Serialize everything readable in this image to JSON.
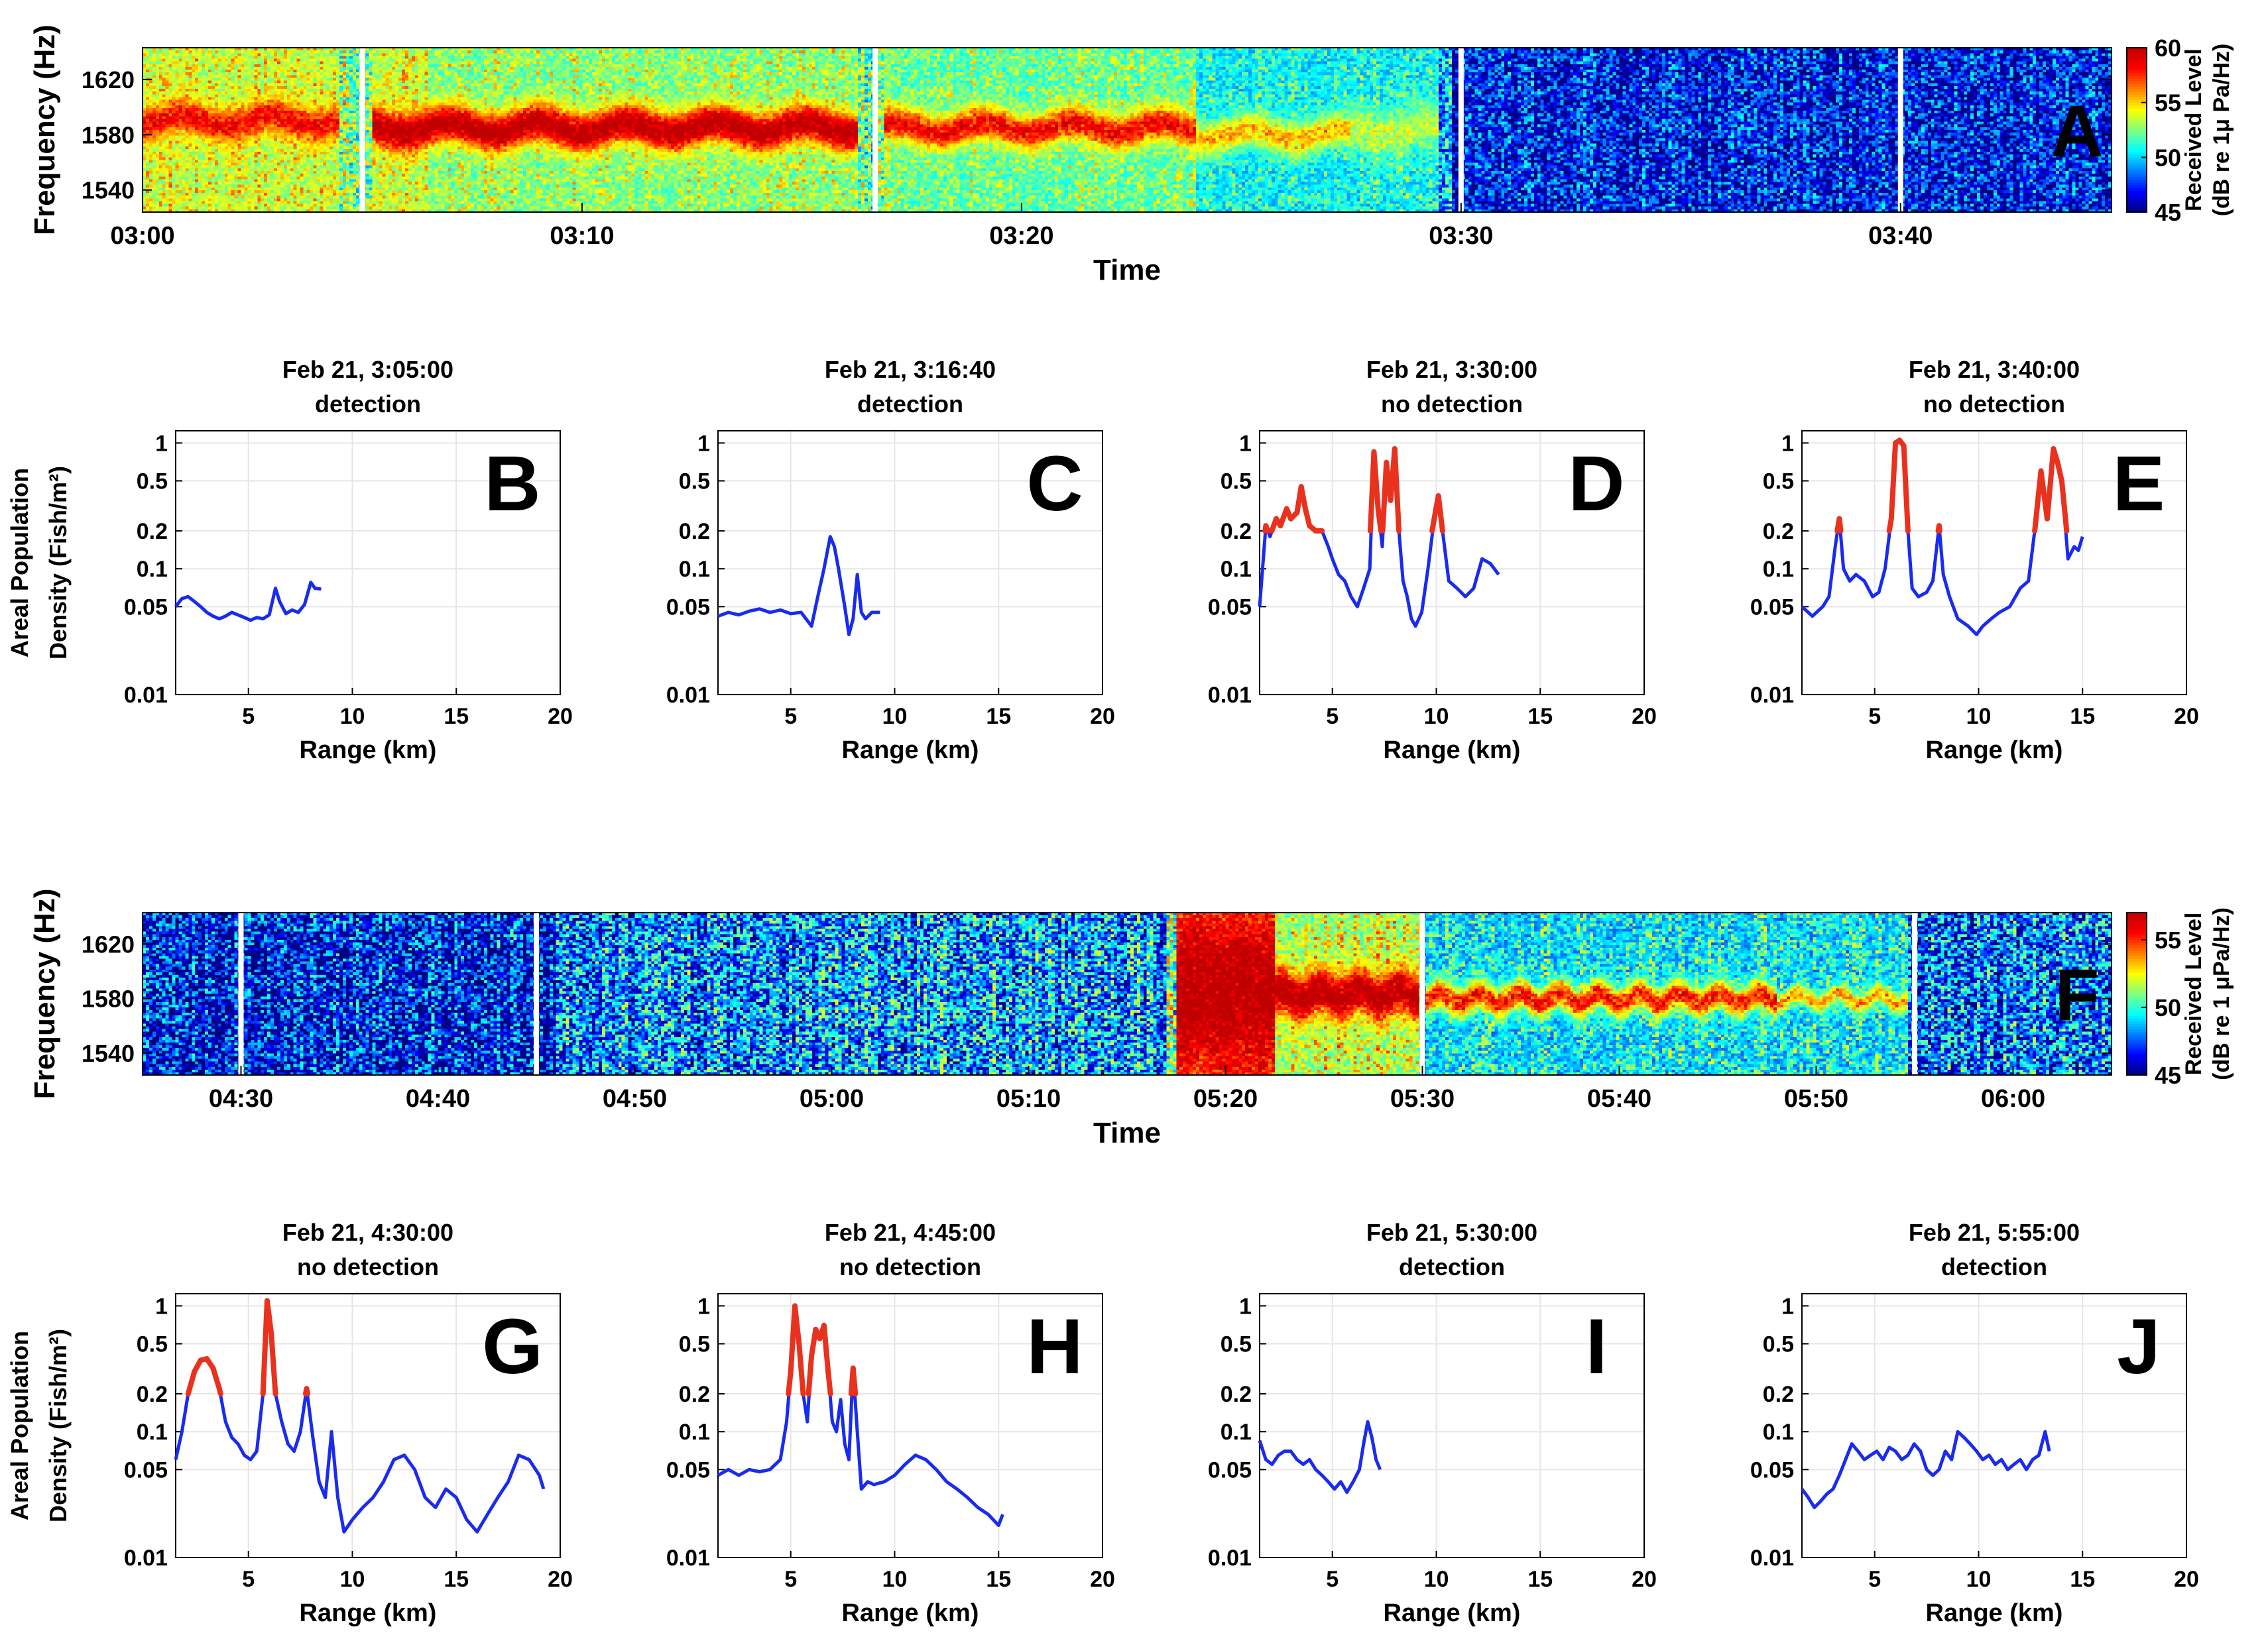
{
  "chart_data": [
    {
      "id": "A",
      "type": "heatmap",
      "panel_letter": "A",
      "xlabel": "Time",
      "ylabel": "Frequency (Hz)",
      "x_range_minutes": [
        180,
        224.8
      ],
      "x_ticks": [
        "03:00",
        "03:10",
        "03:20",
        "03:30",
        "03:40"
      ],
      "x_tick_minutes": [
        180,
        190,
        200,
        210,
        220
      ],
      "y_range": [
        1524,
        1643
      ],
      "y_ticks": [
        1540,
        1580,
        1620
      ],
      "colorbar": {
        "label_line1": "Received Level",
        "label_line2": "(dB re 1μ Pa/Hz)",
        "range": [
          45,
          60
        ],
        "ticks": [
          45,
          50,
          55,
          60
        ]
      },
      "gap_minutes": [
        185,
        196.67,
        210,
        220
      ],
      "signal_segments": [
        {
          "start": 180,
          "end": 184.5,
          "center": 1590,
          "width": 16,
          "level": 58
        },
        {
          "start": 185.2,
          "end": 196.3,
          "center": 1585,
          "width": 18,
          "level": 60
        },
        {
          "start": 196.9,
          "end": 204,
          "center": 1585,
          "width": 16,
          "level": 58
        },
        {
          "start": 204,
          "end": 207.5,
          "center": 1580,
          "width": 16,
          "level": 55
        },
        {
          "start": 207.5,
          "end": 209.5,
          "center": 1583,
          "width": 22,
          "level": 53
        }
      ],
      "background_segments": [
        {
          "start": 180,
          "end": 186.5,
          "level": 53
        },
        {
          "start": 186.5,
          "end": 197,
          "level": 52
        },
        {
          "start": 197,
          "end": 204,
          "level": 51.5
        },
        {
          "start": 204,
          "end": 209.8,
          "level": 50
        },
        {
          "start": 209.8,
          "end": 225,
          "level": 47
        }
      ]
    },
    {
      "id": "B",
      "type": "line",
      "panel_letter": "B",
      "title_line1": "Feb 21, 3:05:00",
      "title_line2": "detection",
      "xlabel": "Range (km)",
      "ylabel_line1": "Areal Population",
      "ylabel_line2": "Density (Fish/m²)",
      "xlim": [
        1.5,
        20
      ],
      "ylim": [
        0.01,
        1.25
      ],
      "yscale": "log",
      "x_ticks": [
        5,
        10,
        15,
        20
      ],
      "y_ticks": [
        0.01,
        0.05,
        0.1,
        0.2,
        0.5,
        1
      ],
      "y_tick_labels": [
        "0.01",
        "0.05",
        "0.1",
        "0.2",
        "0.5",
        "1"
      ],
      "x": [
        1.5,
        1.8,
        2.1,
        2.4,
        2.7,
        3.0,
        3.3,
        3.6,
        3.9,
        4.2,
        4.5,
        4.8,
        5.1,
        5.4,
        5.7,
        6.0,
        6.3,
        6.5,
        6.8,
        7.1,
        7.4,
        7.7,
        8.0,
        8.2,
        8.5
      ],
      "y": [
        0.05,
        0.058,
        0.06,
        0.055,
        0.05,
        0.045,
        0.042,
        0.04,
        0.042,
        0.045,
        0.043,
        0.041,
        0.039,
        0.041,
        0.04,
        0.043,
        0.07,
        0.055,
        0.044,
        0.047,
        0.045,
        0.052,
        0.078,
        0.07,
        0.069
      ],
      "threshold": 0.2
    },
    {
      "id": "C",
      "type": "line",
      "panel_letter": "C",
      "title_line1": "Feb 21, 3:16:40",
      "title_line2": "detection",
      "xlabel": "Range (km)",
      "xlim": [
        1.5,
        20
      ],
      "ylim": [
        0.01,
        1.25
      ],
      "yscale": "log",
      "x_ticks": [
        5,
        10,
        15,
        20
      ],
      "y_ticks": [
        0.01,
        0.05,
        0.1,
        0.2,
        0.5,
        1
      ],
      "y_tick_labels": [
        "0.01",
        "0.05",
        "0.1",
        "0.2",
        "0.5",
        "1"
      ],
      "x": [
        1.5,
        2.0,
        2.5,
        3.0,
        3.5,
        4.0,
        4.5,
        5.0,
        5.5,
        6.0,
        6.3,
        6.6,
        6.9,
        7.1,
        7.3,
        7.6,
        7.8,
        8.0,
        8.2,
        8.4,
        8.6,
        8.9,
        9.3
      ],
      "y": [
        0.042,
        0.045,
        0.043,
        0.046,
        0.048,
        0.045,
        0.047,
        0.044,
        0.045,
        0.035,
        0.06,
        0.1,
        0.18,
        0.15,
        0.1,
        0.05,
        0.03,
        0.04,
        0.09,
        0.045,
        0.04,
        0.045,
        0.045
      ],
      "threshold": 0.2
    },
    {
      "id": "D",
      "type": "line",
      "panel_letter": "D",
      "title_line1": "Feb 21, 3:30:00",
      "title_line2": "no detection",
      "xlabel": "Range (km)",
      "xlim": [
        1.5,
        20
      ],
      "ylim": [
        0.01,
        1.25
      ],
      "yscale": "log",
      "x_ticks": [
        5,
        10,
        15,
        20
      ],
      "y_ticks": [
        0.01,
        0.05,
        0.1,
        0.2,
        0.5,
        1
      ],
      "y_tick_labels": [
        "0.01",
        "0.05",
        "0.1",
        "0.2",
        "0.5",
        "1"
      ],
      "x": [
        1.5,
        1.8,
        2.0,
        2.3,
        2.5,
        2.8,
        3.0,
        3.3,
        3.5,
        3.7,
        3.9,
        4.2,
        4.5,
        4.8,
        5.0,
        5.3,
        5.6,
        5.9,
        6.2,
        6.5,
        6.8,
        7.0,
        7.2,
        7.4,
        7.6,
        7.8,
        8.0,
        8.2,
        8.4,
        8.6,
        8.8,
        9.0,
        9.3,
        9.6,
        9.9,
        10.1,
        10.3,
        10.6,
        11.0,
        11.4,
        11.8,
        12.2,
        12.6,
        13.0
      ],
      "y": [
        0.05,
        0.22,
        0.18,
        0.25,
        0.22,
        0.3,
        0.25,
        0.28,
        0.45,
        0.3,
        0.22,
        0.2,
        0.2,
        0.15,
        0.12,
        0.09,
        0.08,
        0.06,
        0.05,
        0.07,
        0.1,
        0.85,
        0.3,
        0.15,
        0.7,
        0.35,
        0.9,
        0.2,
        0.08,
        0.06,
        0.04,
        0.035,
        0.045,
        0.1,
        0.25,
        0.38,
        0.2,
        0.08,
        0.07,
        0.06,
        0.07,
        0.12,
        0.11,
        0.09
      ],
      "threshold": 0.2
    },
    {
      "id": "E",
      "type": "line",
      "panel_letter": "E",
      "title_line1": "Feb 21, 3:40:00",
      "title_line2": "no detection",
      "xlabel": "Range (km)",
      "xlim": [
        1.5,
        20
      ],
      "ylim": [
        0.01,
        1.25
      ],
      "yscale": "log",
      "x_ticks": [
        5,
        10,
        15,
        20
      ],
      "y_ticks": [
        0.01,
        0.05,
        0.1,
        0.2,
        0.5,
        1
      ],
      "y_tick_labels": [
        "0.01",
        "0.05",
        "0.1",
        "0.2",
        "0.5",
        "1"
      ],
      "x": [
        1.5,
        2.0,
        2.5,
        2.8,
        3.1,
        3.3,
        3.5,
        3.8,
        4.1,
        4.5,
        4.9,
        5.2,
        5.5,
        5.8,
        6.0,
        6.2,
        6.4,
        6.6,
        6.8,
        7.1,
        7.5,
        7.8,
        8.1,
        8.3,
        8.6,
        9.0,
        9.5,
        9.9,
        10.2,
        10.6,
        11.0,
        11.5,
        12.0,
        12.4,
        12.7,
        13.0,
        13.3,
        13.6,
        13.8,
        14.0,
        14.3,
        14.6,
        14.8,
        15.0
      ],
      "y": [
        0.05,
        0.042,
        0.05,
        0.06,
        0.15,
        0.25,
        0.1,
        0.08,
        0.09,
        0.08,
        0.06,
        0.065,
        0.1,
        0.25,
        1.0,
        1.05,
        0.95,
        0.2,
        0.07,
        0.06,
        0.065,
        0.08,
        0.22,
        0.09,
        0.06,
        0.04,
        0.035,
        0.03,
        0.035,
        0.04,
        0.045,
        0.05,
        0.07,
        0.08,
        0.2,
        0.6,
        0.25,
        0.9,
        0.7,
        0.5,
        0.12,
        0.15,
        0.14,
        0.18
      ],
      "threshold": 0.2
    },
    {
      "id": "F",
      "type": "heatmap",
      "panel_letter": "F",
      "xlabel": "Time",
      "ylabel": "Frequency (Hz)",
      "x_range_minutes": [
        265,
        365
      ],
      "x_ticks": [
        "04:30",
        "04:40",
        "04:50",
        "05:00",
        "05:10",
        "05:20",
        "05:30",
        "05:40",
        "05:50",
        "06:00"
      ],
      "x_tick_minutes": [
        270,
        280,
        290,
        300,
        310,
        320,
        330,
        340,
        350,
        360
      ],
      "y_range": [
        1524,
        1643
      ],
      "y_ticks": [
        1540,
        1580,
        1620
      ],
      "colorbar": {
        "label_line1": "Received Level",
        "label_line2": "(dB re 1 μPa/Hz)",
        "range": [
          45,
          57
        ],
        "ticks": [
          45,
          50,
          55
        ]
      },
      "gap_minutes": [
        270,
        285,
        330,
        355
      ],
      "signal_segments": [
        {
          "start": 317.5,
          "end": 322.5,
          "center": 1585,
          "width": 110,
          "level": 57
        },
        {
          "start": 322.5,
          "end": 329.8,
          "center": 1583,
          "width": 22,
          "level": 57
        },
        {
          "start": 330.2,
          "end": 348,
          "center": 1580,
          "width": 14,
          "level": 55
        },
        {
          "start": 348,
          "end": 354.7,
          "center": 1580,
          "width": 10,
          "level": 53
        }
      ],
      "background_segments": [
        {
          "start": 265,
          "end": 286,
          "level": 46.5
        },
        {
          "start": 286,
          "end": 300,
          "level": 48
        },
        {
          "start": 300,
          "end": 317,
          "level": 48.5
        },
        {
          "start": 317,
          "end": 330,
          "level": 51
        },
        {
          "start": 330,
          "end": 355,
          "level": 48.5
        },
        {
          "start": 355,
          "end": 365,
          "level": 48
        }
      ]
    },
    {
      "id": "G",
      "type": "line",
      "panel_letter": "G",
      "title_line1": "Feb 21, 4:30:00",
      "title_line2": "no detection",
      "xlabel": "Range (km)",
      "ylabel_line1": "Areal Population",
      "ylabel_line2": "Density (Fish/m²)",
      "xlim": [
        1.5,
        20
      ],
      "ylim": [
        0.01,
        1.25
      ],
      "yscale": "log",
      "x_ticks": [
        5,
        10,
        15,
        20
      ],
      "y_ticks": [
        0.01,
        0.05,
        0.1,
        0.2,
        0.5,
        1
      ],
      "y_tick_labels": [
        "0.01",
        "0.05",
        "0.1",
        "0.2",
        "0.5",
        "1"
      ],
      "x": [
        1.5,
        1.8,
        2.1,
        2.4,
        2.7,
        3.0,
        3.3,
        3.6,
        3.9,
        4.2,
        4.5,
        4.8,
        5.1,
        5.4,
        5.7,
        5.9,
        6.1,
        6.3,
        6.6,
        6.9,
        7.2,
        7.5,
        7.8,
        8.1,
        8.4,
        8.7,
        9.0,
        9.3,
        9.6,
        10.0,
        10.5,
        11.0,
        11.5,
        12.0,
        12.5,
        13.0,
        13.5,
        14.0,
        14.5,
        15.0,
        15.5,
        16.0,
        16.5,
        17.0,
        17.5,
        18.0,
        18.5,
        19.0,
        19.2
      ],
      "y": [
        0.06,
        0.1,
        0.2,
        0.3,
        0.37,
        0.38,
        0.32,
        0.22,
        0.12,
        0.09,
        0.08,
        0.065,
        0.06,
        0.07,
        0.2,
        1.1,
        0.6,
        0.2,
        0.12,
        0.08,
        0.07,
        0.1,
        0.22,
        0.09,
        0.04,
        0.03,
        0.1,
        0.03,
        0.016,
        0.02,
        0.025,
        0.03,
        0.04,
        0.06,
        0.065,
        0.05,
        0.03,
        0.025,
        0.035,
        0.03,
        0.02,
        0.016,
        0.022,
        0.03,
        0.04,
        0.065,
        0.06,
        0.045,
        0.035
      ],
      "threshold": 0.2
    },
    {
      "id": "H",
      "type": "line",
      "panel_letter": "H",
      "title_line1": "Feb 21, 4:45:00",
      "title_line2": "no detection",
      "xlabel": "Range (km)",
      "xlim": [
        1.5,
        20
      ],
      "ylim": [
        0.01,
        1.25
      ],
      "yscale": "log",
      "x_ticks": [
        5,
        10,
        15,
        20
      ],
      "y_ticks": [
        0.01,
        0.05,
        0.1,
        0.2,
        0.5,
        1
      ],
      "y_tick_labels": [
        "0.01",
        "0.05",
        "0.1",
        "0.2",
        "0.5",
        "1"
      ],
      "x": [
        1.5,
        2.0,
        2.5,
        3.0,
        3.5,
        4.0,
        4.5,
        4.8,
        5.0,
        5.2,
        5.4,
        5.6,
        5.8,
        6.0,
        6.2,
        6.4,
        6.6,
        6.8,
        7.0,
        7.2,
        7.4,
        7.6,
        7.8,
        8.0,
        8.2,
        8.4,
        8.7,
        9.0,
        9.5,
        10.0,
        10.5,
        11.0,
        11.5,
        12.0,
        12.5,
        13.0,
        13.5,
        14.0,
        14.5,
        15.0,
        15.2
      ],
      "y": [
        0.045,
        0.05,
        0.045,
        0.05,
        0.048,
        0.05,
        0.06,
        0.12,
        0.3,
        1.0,
        0.5,
        0.2,
        0.12,
        0.4,
        0.65,
        0.55,
        0.7,
        0.3,
        0.12,
        0.1,
        0.18,
        0.08,
        0.06,
        0.32,
        0.1,
        0.035,
        0.04,
        0.038,
        0.04,
        0.045,
        0.055,
        0.065,
        0.06,
        0.05,
        0.04,
        0.035,
        0.03,
        0.025,
        0.022,
        0.018,
        0.022
      ],
      "threshold": 0.2
    },
    {
      "id": "I",
      "type": "line",
      "panel_letter": "I",
      "title_line1": "Feb 21, 5:30:00",
      "title_line2": "detection",
      "xlabel": "Range (km)",
      "xlim": [
        1.5,
        20
      ],
      "ylim": [
        0.01,
        1.25
      ],
      "yscale": "log",
      "x_ticks": [
        5,
        10,
        15,
        20
      ],
      "y_ticks": [
        0.01,
        0.05,
        0.1,
        0.2,
        0.5,
        1
      ],
      "y_tick_labels": [
        "0.01",
        "0.05",
        "0.1",
        "0.2",
        "0.5",
        "1"
      ],
      "x": [
        1.5,
        1.8,
        2.1,
        2.4,
        2.7,
        3.0,
        3.3,
        3.6,
        3.9,
        4.2,
        4.5,
        4.8,
        5.1,
        5.4,
        5.7,
        6.0,
        6.3,
        6.5,
        6.7,
        6.9,
        7.1,
        7.3
      ],
      "y": [
        0.085,
        0.06,
        0.055,
        0.065,
        0.07,
        0.07,
        0.06,
        0.055,
        0.06,
        0.05,
        0.045,
        0.04,
        0.035,
        0.04,
        0.033,
        0.04,
        0.05,
        0.08,
        0.12,
        0.09,
        0.06,
        0.05
      ],
      "threshold": 0.2
    },
    {
      "id": "J",
      "type": "line",
      "panel_letter": "J",
      "title_line1": "Feb 21, 5:55:00",
      "title_line2": "detection",
      "xlabel": "Range (km)",
      "xlim": [
        1.5,
        20
      ],
      "ylim": [
        0.01,
        1.25
      ],
      "yscale": "log",
      "x_ticks": [
        5,
        10,
        15,
        20
      ],
      "y_ticks": [
        0.01,
        0.05,
        0.1,
        0.2,
        0.5,
        1
      ],
      "y_tick_labels": [
        "0.01",
        "0.05",
        "0.1",
        "0.2",
        "0.5",
        "1"
      ],
      "x": [
        1.5,
        1.8,
        2.1,
        2.4,
        2.7,
        3.0,
        3.3,
        3.6,
        3.9,
        4.2,
        4.5,
        4.8,
        5.1,
        5.4,
        5.7,
        6.0,
        6.3,
        6.6,
        6.9,
        7.2,
        7.5,
        7.8,
        8.1,
        8.4,
        8.7,
        9.0,
        9.3,
        9.6,
        9.9,
        10.2,
        10.5,
        10.8,
        11.1,
        11.4,
        11.7,
        12.0,
        12.3,
        12.6,
        12.9,
        13.2,
        13.4
      ],
      "y": [
        0.035,
        0.03,
        0.025,
        0.028,
        0.032,
        0.035,
        0.045,
        0.06,
        0.08,
        0.07,
        0.06,
        0.065,
        0.07,
        0.06,
        0.075,
        0.07,
        0.06,
        0.065,
        0.08,
        0.07,
        0.05,
        0.045,
        0.05,
        0.07,
        0.06,
        0.1,
        0.09,
        0.08,
        0.07,
        0.06,
        0.065,
        0.055,
        0.06,
        0.05,
        0.055,
        0.06,
        0.05,
        0.06,
        0.065,
        0.1,
        0.07
      ],
      "threshold": 0.2
    }
  ]
}
